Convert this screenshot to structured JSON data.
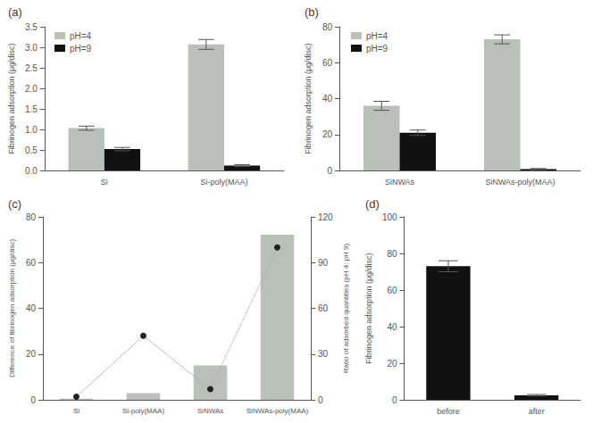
{
  "chart_data": [
    {
      "type": "bar",
      "title": "(a)",
      "categories": [
        "Si",
        "Si-poly(MAA)"
      ],
      "series": [
        {
          "name": "pH=4",
          "color": "#b8c0b8",
          "values": [
            1.03,
            3.07
          ],
          "errors": [
            0.05,
            0.12
          ]
        },
        {
          "name": "pH=9",
          "color": "#111111",
          "values": [
            0.52,
            0.12
          ],
          "errors": [
            0.04,
            0.02
          ]
        }
      ],
      "ylabel": "Fibrinogen adsorption (μg/disc)",
      "ylim": [
        0,
        3.5
      ],
      "yticks": [
        {
          "value": 0,
          "label": "0.0"
        },
        0.5,
        {
          "value": 1,
          "label": "1.0"
        },
        1.5,
        {
          "value": 2,
          "label": "2.0"
        },
        2.5,
        {
          "value": 3,
          "label": "3.0"
        },
        3.5
      ],
      "legend": "upper left",
      "grid": false
    },
    {
      "type": "bar",
      "title": "(b)",
      "categories": [
        "SiNWAs",
        "SiNWAs-poly(MAA)"
      ],
      "series": [
        {
          "name": "pH=4",
          "color": "#b8c0b8",
          "values": [
            36,
            73
          ],
          "errors": [
            2.5,
            2.5
          ]
        },
        {
          "name": "pH=9",
          "color": "#111111",
          "values": [
            21,
            0.8
          ],
          "errors": [
            1.5,
            0.3
          ]
        }
      ],
      "ylabel": "Fibrinogen adsorption (μg/disc)",
      "ylim": [
        0,
        80
      ],
      "yticks": [
        0,
        20,
        40,
        60,
        80
      ],
      "legend": "upper left",
      "grid": false
    },
    {
      "type": "bar",
      "title": "(c)",
      "categories": [
        "Si",
        "Si-poly(MAA)",
        "SiNWAs",
        "SiNWAs-poly(MAA)"
      ],
      "series": [
        {
          "type": "bar",
          "color": "#b8c0b8",
          "values": [
            0.5,
            2.9,
            15.0,
            72.2
          ]
        },
        {
          "type": "line",
          "axis": "y2",
          "color": "#222222",
          "marker": "circle",
          "line_style": "dotted",
          "values": [
            2.0,
            42.0,
            7.0,
            100.0
          ]
        }
      ],
      "ylabel": "Difference of fibrinogen adsorption (μg/disc)",
      "y2label": "Ratio of adsorbed quantities (pH 4: pH 9)",
      "ylim": [
        0,
        80
      ],
      "yticks": [
        0,
        20,
        40,
        60,
        80
      ],
      "y2lim": [
        0,
        120
      ],
      "y2ticks": [
        0,
        30,
        60,
        90,
        120
      ],
      "grid": false
    },
    {
      "type": "bar",
      "title": "(d)",
      "categories": [
        "before",
        "after"
      ],
      "values": [
        73,
        2.5
      ],
      "errors": [
        3.0,
        0.4
      ],
      "color": "#111111",
      "ylabel": "Fibrinogen adsorption (μg/disc)",
      "ylim": [
        0,
        100
      ],
      "yticks": [
        0,
        20,
        40,
        60,
        80,
        100
      ],
      "grid": false
    }
  ]
}
